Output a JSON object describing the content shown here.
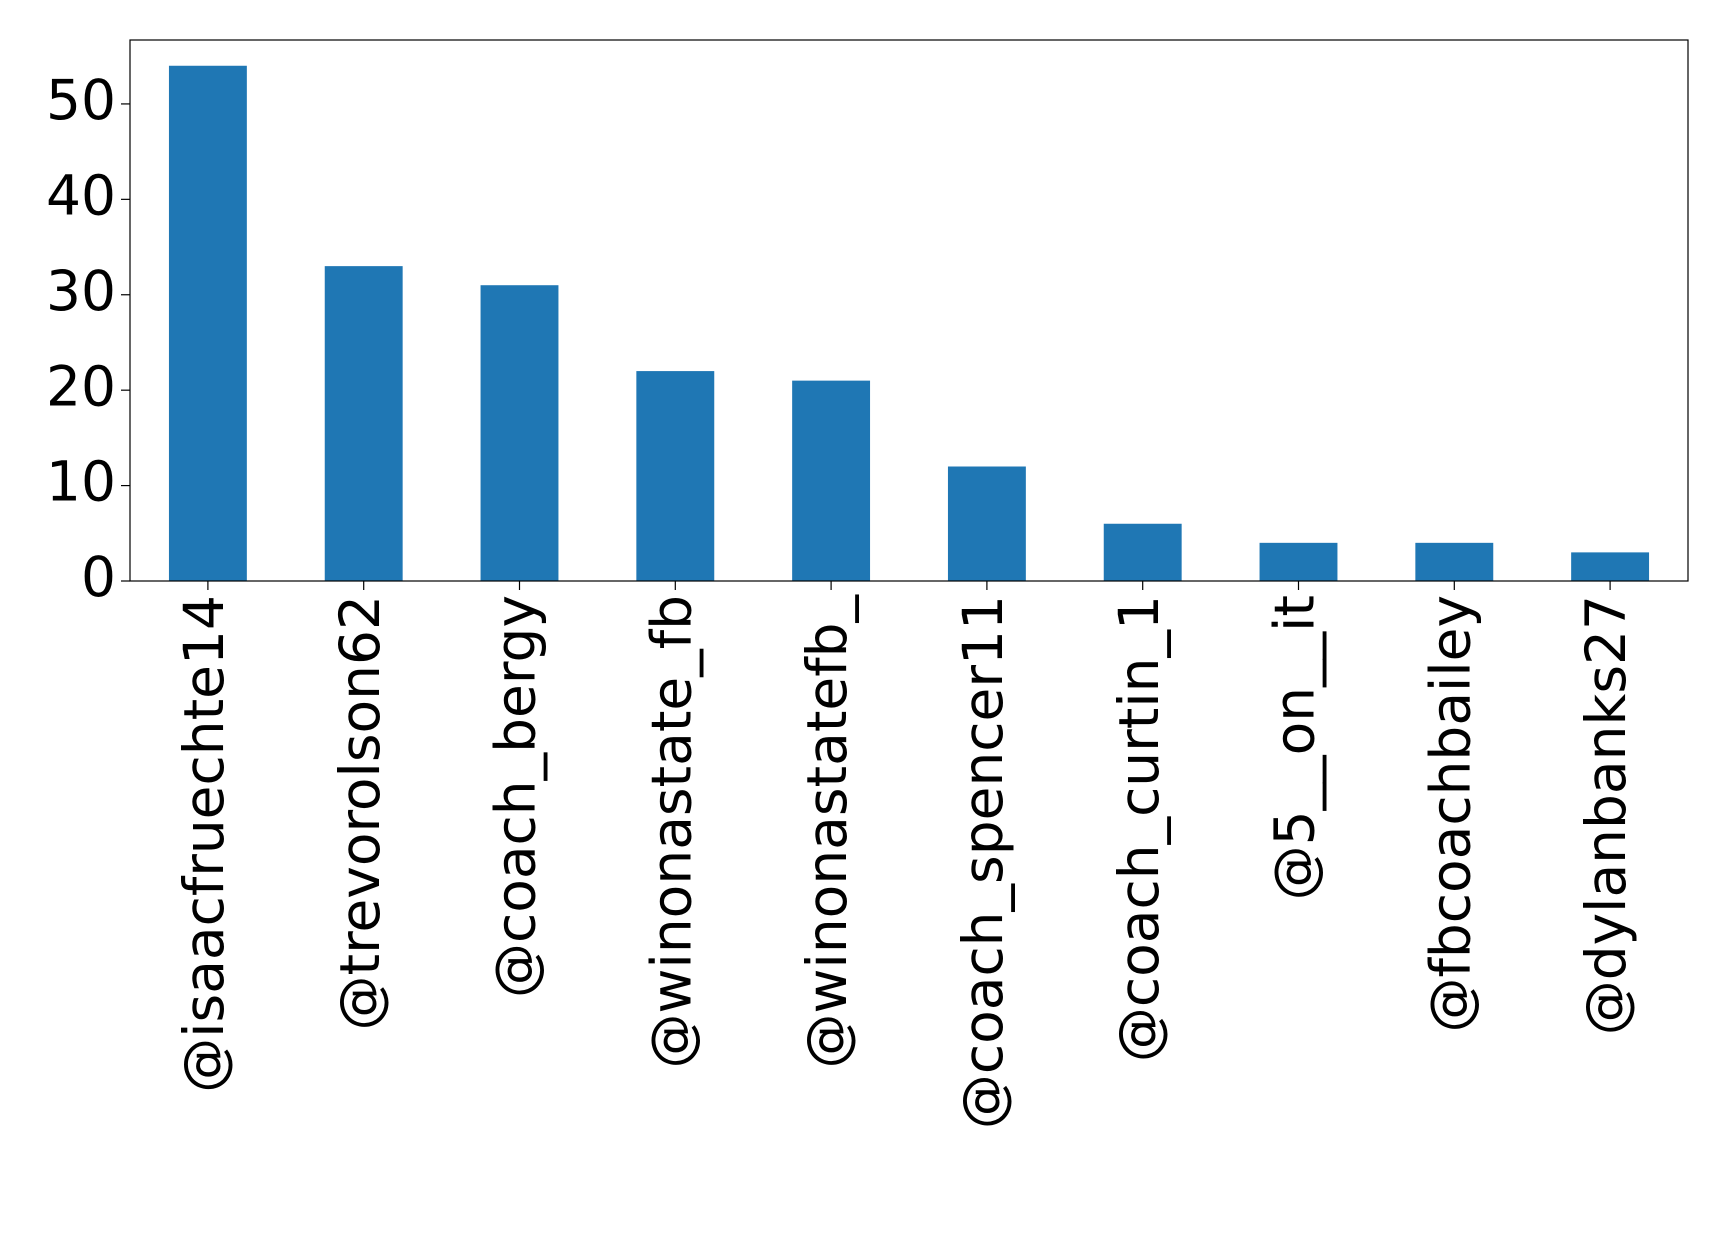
{
  "chart_data": {
    "type": "bar",
    "categories": [
      "@isaacfruechte14",
      "@trevorolson62",
      "@coach_bergy",
      "@winonastate_fb",
      "@winonastatefb_",
      "@coach_spencer11",
      "@coach_curtin_1",
      "@5__on__it",
      "@fbcoachbailey",
      "@dylanbanks27"
    ],
    "values": [
      54,
      33,
      31,
      22,
      21,
      12,
      6,
      4,
      4,
      3
    ],
    "color": "#1f77b4",
    "ylim": [
      0,
      56.7
    ],
    "yticks": [
      0,
      10,
      20,
      30,
      40,
      50
    ],
    "grid": false
  }
}
